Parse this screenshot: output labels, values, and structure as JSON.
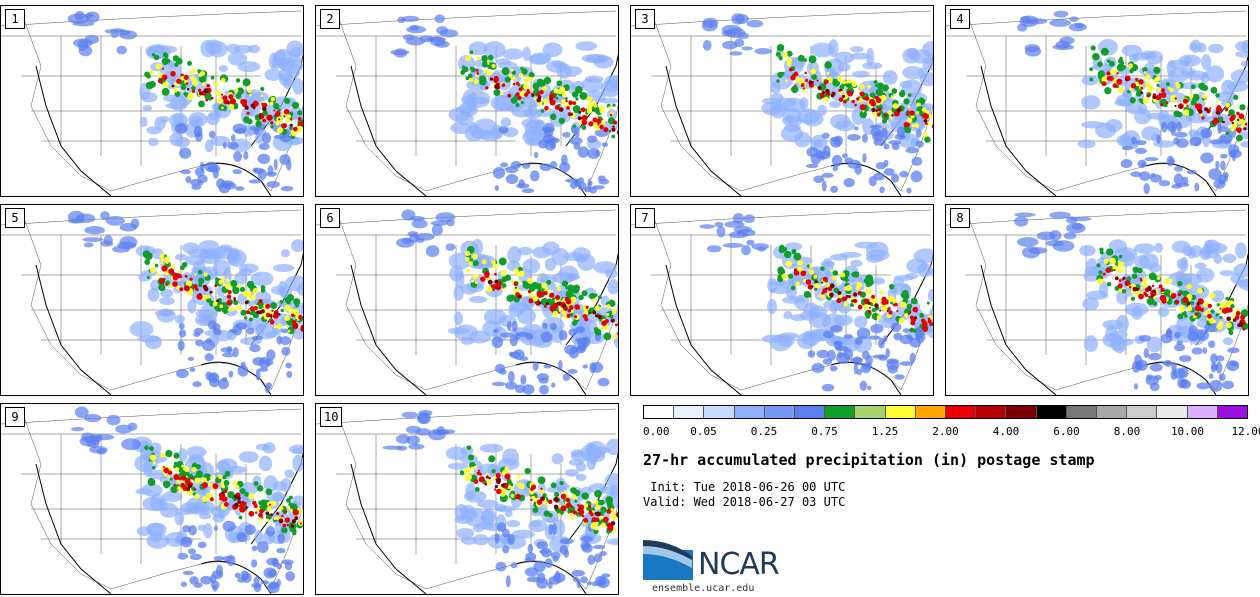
{
  "panels": [
    {
      "label": "1"
    },
    {
      "label": "2"
    },
    {
      "label": "3"
    },
    {
      "label": "4"
    },
    {
      "label": "5"
    },
    {
      "label": "6"
    },
    {
      "label": "7"
    },
    {
      "label": "8"
    },
    {
      "label": "9"
    },
    {
      "label": "10"
    }
  ],
  "colorbar": {
    "colors": [
      "#ffffff",
      "#e8f1ff",
      "#c8dcff",
      "#8fb0ff",
      "#7799f5",
      "#5b7ff0",
      "#0f9e27",
      "#a6d46a",
      "#ffff33",
      "#ffa500",
      "#e60000",
      "#b30000",
      "#7a0000",
      "#000000",
      "#777777",
      "#a9a9a9",
      "#cccccc",
      "#ebebeb",
      "#ddb0ff",
      "#9b10e0"
    ],
    "tick_labels": [
      "0.00",
      "0.05",
      "0.25",
      "0.75",
      "1.25",
      "2.00",
      "4.00",
      "6.00",
      "8.00",
      "10.00",
      "12.00"
    ]
  },
  "title": "27-hr accumulated precipitation (in) postage stamp",
  "init": " Init: Tue 2018-06-26 00 UTC",
  "valid": "Valid: Wed 2018-06-27 03 UTC",
  "logo": {
    "name": "NCAR",
    "url": "ensemble.ucar.edu",
    "color": "#1f3a5a",
    "accent": "#1a78c2"
  },
  "map_colors": {
    "light_blue": "#8fb0ff",
    "mid_blue": "#5b7ff0",
    "green": "#0f9e27",
    "yellow": "#ffff33",
    "red": "#e60000",
    "dark_red": "#7a0000"
  }
}
